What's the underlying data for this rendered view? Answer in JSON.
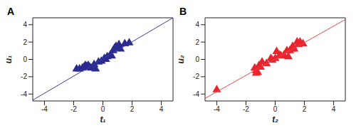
{
  "chart_data": [
    {
      "type": "scatter",
      "title": "A",
      "x_label": "t₁",
      "y_label": "u₁",
      "xlim": [
        -4.8,
        4.8
      ],
      "ylim": [
        -4.8,
        4.8
      ],
      "xticks": [
        -4,
        -2,
        0,
        2,
        4
      ],
      "yticks": [
        -4,
        -2,
        0,
        2,
        4
      ],
      "series": [
        {
          "type": "scatter",
          "color": "#2b2a8f",
          "marker": "triangle",
          "x": [
            -1.8,
            -1.6,
            -1.4,
            -1.3,
            -1.2,
            -1.1,
            -1.0,
            -0.9,
            -0.8,
            -0.5,
            -0.3,
            -0.1,
            0.1,
            0.3,
            0.5,
            0.6,
            0.7,
            0.8,
            0.9,
            1.0,
            1.1,
            1.2,
            1.5,
            1.8,
            -0.6,
            0.2
          ],
          "values": [
            -1.1,
            -1.1,
            -1.0,
            -0.9,
            -0.7,
            -0.8,
            -0.7,
            -0.9,
            -1.0,
            -1.1,
            -0.3,
            -0.2,
            0.1,
            0.3,
            0.5,
            0.4,
            1.0,
            1.3,
            1.5,
            1.3,
            1.7,
            1.2,
            1.8,
            1.9,
            -0.6,
            0.0
          ]
        },
        {
          "type": "line",
          "color": "#3c3c9e",
          "x": [
            -4.8,
            4.8
          ],
          "values": [
            -4.7,
            4.8
          ]
        }
      ]
    },
    {
      "type": "scatter",
      "title": "B",
      "x_label": "t₂",
      "y_label": "u₂",
      "xlim": [
        -4.8,
        4.8
      ],
      "ylim": [
        -4.8,
        4.8
      ],
      "xticks": [
        -4,
        -2,
        0,
        2,
        4
      ],
      "yticks": [
        -4,
        -2,
        0,
        2,
        4
      ],
      "series": [
        {
          "type": "scatter",
          "color": "#e8252f",
          "marker": "triangle",
          "x": [
            -4.0,
            -1.4,
            -1.3,
            -1.3,
            -1.2,
            -1.1,
            -0.9,
            -0.6,
            -0.3,
            -0.2,
            0.0,
            0.1,
            0.3,
            0.4,
            0.6,
            0.8,
            0.9,
            1.0,
            1.1,
            1.2,
            1.3,
            1.5,
            1.6,
            1.7,
            1.9,
            -1.0
          ],
          "values": [
            -3.5,
            -1.0,
            -1.3,
            -1.6,
            -1.5,
            -0.7,
            -0.3,
            -0.5,
            0.1,
            -0.1,
            0.1,
            0.9,
            0.5,
            0.4,
            0.5,
            1.0,
            0.3,
            1.0,
            1.2,
            1.5,
            1.2,
            2.0,
            1.7,
            2.0,
            1.8,
            -0.9
          ]
        },
        {
          "type": "line",
          "color": "#e8474a",
          "x": [
            -4.8,
            4.8
          ],
          "values": [
            -4.5,
            4.6
          ]
        }
      ]
    }
  ]
}
